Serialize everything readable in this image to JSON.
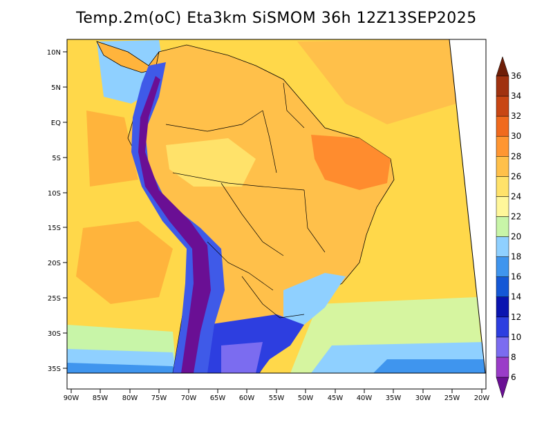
{
  "title": "Temp.2m(oC) Eta3km SiSMOM 36h 12Z13SEP2025",
  "lat_labels": [
    "10N",
    "5N",
    "EQ",
    "5S",
    "10S",
    "15S",
    "20S",
    "25S",
    "30S",
    "35S"
  ],
  "lon_labels": [
    "90W",
    "85W",
    "80W",
    "75W",
    "70W",
    "65W",
    "60W",
    "55W",
    "50W",
    "45W",
    "40W",
    "35W",
    "30W",
    "25W",
    "20W"
  ],
  "colorbar": {
    "levels": [
      "6",
      "8",
      "10",
      "12",
      "14",
      "16",
      "18",
      "20",
      "22",
      "24",
      "26",
      "28",
      "30",
      "32",
      "34",
      "36"
    ],
    "colors": [
      "#6a0f94",
      "#9a3cc8",
      "#7b6cf0",
      "#2d3ee0",
      "#0a14b0",
      "#1558d6",
      "#3f95ee",
      "#8fd0ff",
      "#c8f5a8",
      "#fff79a",
      "#ffe26a",
      "#ffc04a",
      "#ff9632",
      "#f06a1e",
      "#c84614",
      "#a03210",
      "#6e1e08"
    ]
  },
  "colors": {
    "ocean": "#ffd84a",
    "warm_land": "#ffb43c",
    "hot": "#ff8c2e",
    "andes": "#6a0f94",
    "cold_south": "#3f5ae8"
  }
}
